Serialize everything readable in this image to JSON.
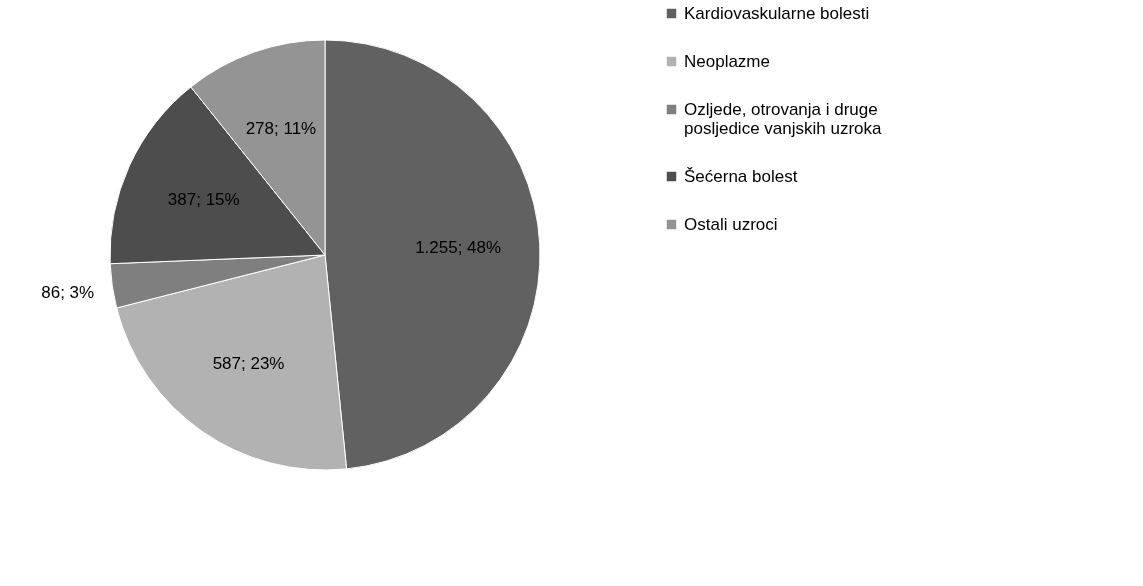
{
  "chart_data": {
    "type": "pie",
    "categories": [
      "Kardiovaskularne bolesti",
      "Neoplazme",
      "Ozljede, otrovanja i druge posljedice vanjskih uzroka",
      "Šećerna bolest",
      "Ostali uzroci"
    ],
    "values": [
      1255,
      587,
      86,
      387,
      278
    ],
    "colors": [
      "#616161",
      "#b2b2b2",
      "#7f7f7f",
      "#4d4d4d",
      "#949494"
    ],
    "value_labels": [
      "1.255; 48%",
      "587; 23%",
      "86; 3%",
      "387; 15%",
      "278; 11%"
    ],
    "legend": "right"
  }
}
